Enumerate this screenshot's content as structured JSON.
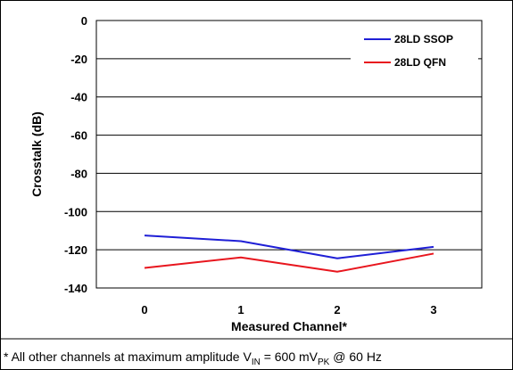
{
  "chart_data": {
    "type": "line",
    "title": "",
    "xlabel": "Measured Channel*",
    "ylabel": "Crosstalk (dB)",
    "categories": [
      "0",
      "1",
      "2",
      "3"
    ],
    "ylim": [
      -140,
      0
    ],
    "yticks": [
      0,
      -20,
      -40,
      -60,
      -80,
      -100,
      -120,
      -140
    ],
    "grid": true,
    "legend_position": "top-right",
    "series": [
      {
        "name": "28LD SSOP",
        "color": "#1f1fd6",
        "values": [
          -112.5,
          -115.5,
          -124.5,
          -118.5
        ]
      },
      {
        "name": "28LD QFN",
        "color": "#e8161e",
        "values": [
          -129.5,
          -124,
          -131.5,
          -122
        ]
      }
    ]
  },
  "footnote": {
    "prefix": "* All other channels at maximum amplitude V",
    "sub1": "IN",
    "mid": " = 600 mV",
    "sub2": "PK",
    "suffix": " @ 60 Hz"
  }
}
